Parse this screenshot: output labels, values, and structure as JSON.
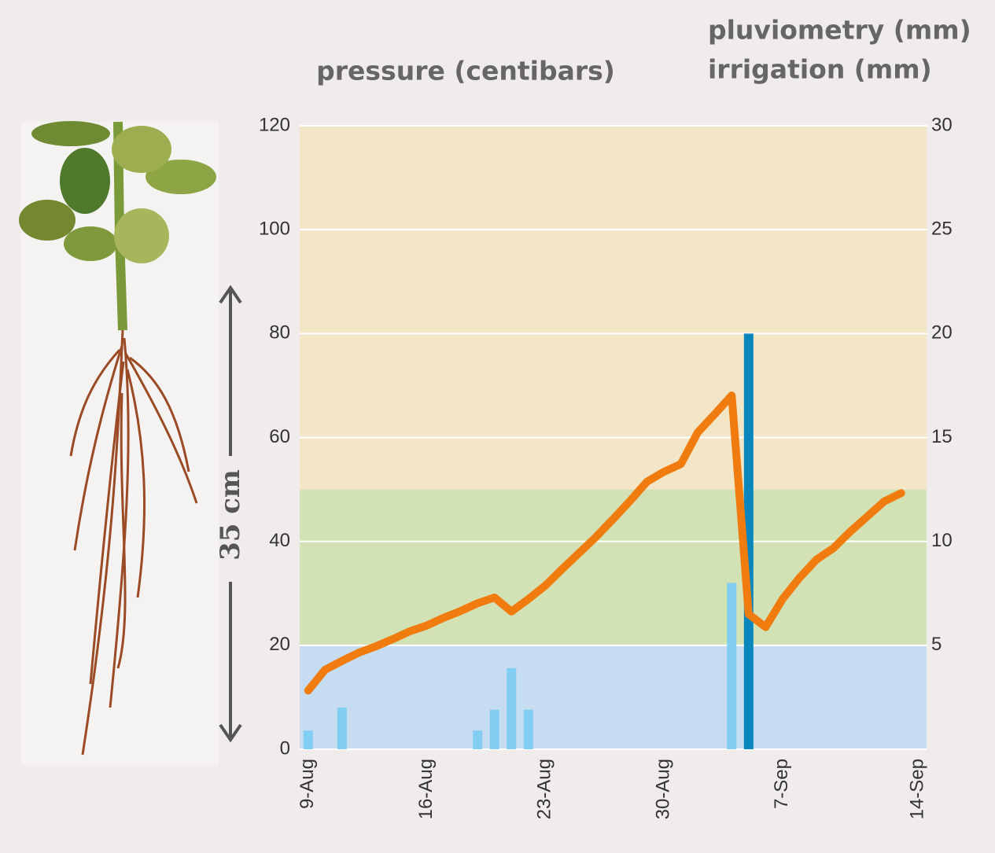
{
  "chart_data": {
    "type": "combo",
    "ylabel": "pressure (centibars)",
    "annotation": "35 cm",
    "categories": [
      "9-Aug",
      null,
      null,
      null,
      null,
      null,
      null,
      "16-Aug",
      null,
      null,
      null,
      null,
      null,
      null,
      "23-Aug",
      null,
      null,
      null,
      null,
      null,
      null,
      "30-Aug",
      null,
      null,
      null,
      null,
      null,
      null,
      "7-Sep",
      null,
      null,
      null,
      null,
      null,
      null,
      null,
      "14-Sep"
    ],
    "ylim": [
      0,
      120
    ],
    "yticks": [
      0,
      20,
      40,
      60,
      80,
      100,
      120
    ],
    "y2lim": [
      0,
      30
    ],
    "y2ticks": [
      5,
      10,
      15,
      20,
      25,
      30
    ],
    "grid": true,
    "zones": [
      {
        "from": 0,
        "to": 20,
        "color": "#c6dcf1"
      },
      {
        "from": 20,
        "to": 50,
        "color": "#d3e2b5"
      },
      {
        "from": 50,
        "to": 120,
        "color": "#f2e6c6"
      }
    ],
    "series": [
      {
        "type": "bar",
        "name": "pluviometry (mm)",
        "color": "#82cdf2",
        "axis": "y2",
        "values": [
          0.9,
          null,
          2,
          null,
          null,
          null,
          null,
          null,
          null,
          null,
          0.9,
          1.9,
          3.9,
          1.9,
          null,
          null,
          null,
          null,
          null,
          null,
          null,
          null,
          null,
          null,
          null,
          8,
          null,
          null,
          null,
          null,
          null,
          null,
          null,
          null,
          null,
          null,
          null
        ]
      },
      {
        "type": "bar",
        "name": "irrigation (mm)",
        "color": "#0a86bd",
        "axis": "y2",
        "values": [
          null,
          null,
          null,
          null,
          null,
          null,
          null,
          null,
          null,
          null,
          null,
          null,
          null,
          null,
          null,
          null,
          null,
          null,
          null,
          null,
          null,
          null,
          null,
          null,
          null,
          null,
          20,
          null,
          null,
          null,
          null,
          null,
          null,
          null,
          null,
          null,
          null
        ]
      },
      {
        "type": "line",
        "color": "#f07c0f",
        "values": [
          11.3,
          15.3,
          17,
          18.6,
          19.8,
          21.2,
          22.7,
          23.8,
          25.3,
          26.6,
          28.1,
          29.2,
          26.5,
          28.9,
          31.5,
          34.7,
          37.8,
          40.9,
          44.3,
          47.8,
          51.5,
          53.4,
          54.9,
          61,
          64.5,
          68.1,
          26,
          23.5,
          28.9,
          33,
          36.5,
          38.7,
          41.9,
          44.8,
          47.7,
          49.3,
          null
        ]
      }
    ]
  }
}
